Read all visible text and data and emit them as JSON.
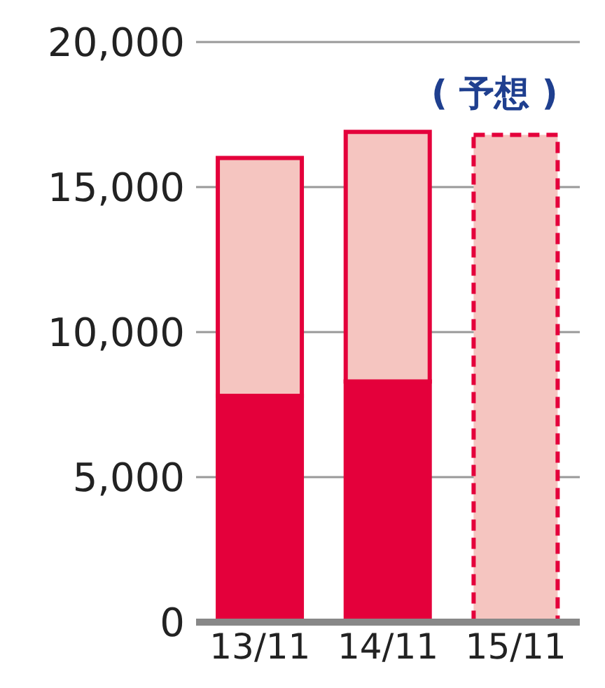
{
  "chart_data": {
    "type": "bar",
    "stacked": true,
    "categories": [
      "13/11",
      "14/11",
      "15/11"
    ],
    "series": [
      {
        "color": "#e4003b",
        "values": [
          7800,
          8300,
          null
        ]
      },
      {
        "color": "#f5c5c0",
        "values": [
          8200,
          8600,
          null
        ]
      },
      {
        "color": "#f5c5c0",
        "values": [
          null,
          null,
          16800
        ],
        "line_style": "dashed"
      }
    ],
    "ylim": [
      0,
      20000
    ],
    "yticks": [
      {
        "value": 0,
        "label": "0"
      },
      {
        "value": 5000,
        "label": "5,000"
      },
      {
        "value": 10000,
        "label": "10,000"
      },
      {
        "value": 15000,
        "label": "15,000"
      },
      {
        "value": 20000,
        "label": "20,000"
      }
    ],
    "grid": "y",
    "annotations": [
      "( 予想 )"
    ]
  }
}
